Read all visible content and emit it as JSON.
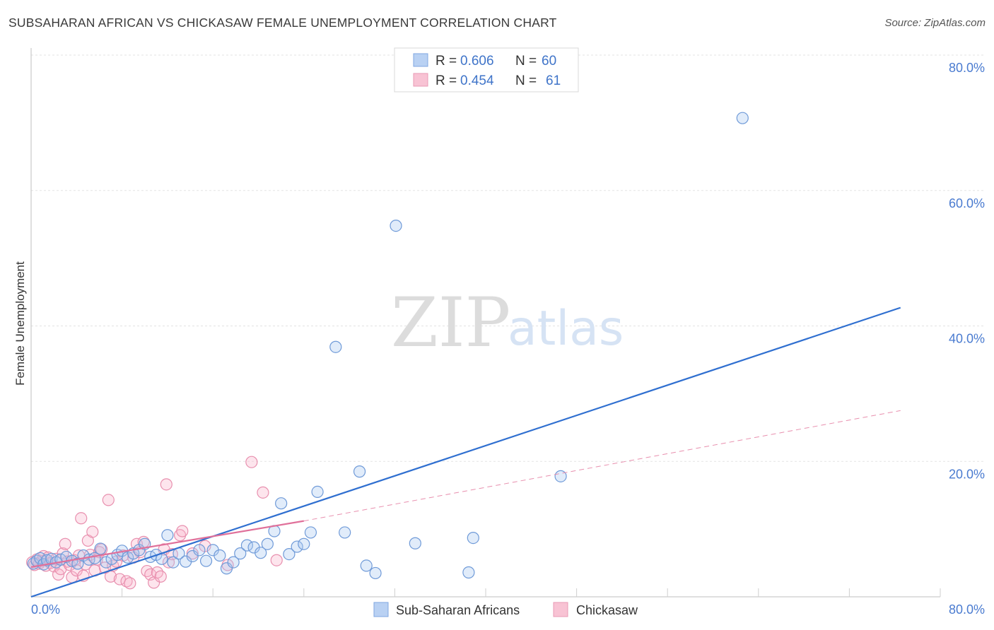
{
  "title": "SUBSAHARAN AFRICAN VS CHICKASAW FEMALE UNEMPLOYMENT CORRELATION CHART",
  "source": "Source: ZipAtlas.com",
  "watermark": {
    "zip": "ZIP",
    "atlas": "atlas"
  },
  "legend": {
    "r_label": "R =",
    "n_label": "N =",
    "series": [
      {
        "r": "0.606",
        "n": "60"
      },
      {
        "r": "0.454",
        "n": "61"
      }
    ]
  },
  "bottom_legend": [
    "Sub-Saharan Africans",
    "Chickasaw"
  ],
  "chart_data": {
    "type": "scatter",
    "title": "SUBSAHARAN AFRICAN VS CHICKASAW FEMALE UNEMPLOYMENT CORRELATION CHART",
    "xlabel": "",
    "ylabel": "Female Unemployment",
    "xlim": [
      0,
      80
    ],
    "ylim": [
      0,
      80
    ],
    "x_tick_labels": [
      "0.0%",
      "80.0%"
    ],
    "y_tick_labels": [
      "20.0%",
      "40.0%",
      "60.0%",
      "80.0%"
    ],
    "y_ticks": [
      20,
      40,
      60,
      80
    ],
    "grid": true,
    "legend_position": "top-center",
    "colors": {
      "series1": "#4a7bd0",
      "series2": "#e57aa0"
    },
    "series": [
      {
        "name": "Sub-Saharan Africans",
        "color": "#4a7bd0",
        "r": 0.606,
        "n": 60,
        "trend": {
          "x0": 0,
          "y0": 0,
          "x1": 76.5,
          "y1": 42.7
        },
        "points": [
          [
            0.2,
            4.9
          ],
          [
            0.5,
            5.3
          ],
          [
            0.8,
            5.7
          ],
          [
            1.1,
            4.8
          ],
          [
            1.4,
            5.4
          ],
          [
            1.8,
            5.6
          ],
          [
            2.2,
            5.1
          ],
          [
            2.6,
            5.5
          ],
          [
            3.1,
            5.9
          ],
          [
            3.6,
            5.3
          ],
          [
            4.1,
            4.9
          ],
          [
            4.6,
            6.1
          ],
          [
            5.1,
            5.5
          ],
          [
            5.6,
            5.7
          ],
          [
            6.1,
            7.1
          ],
          [
            6.6,
            5.1
          ],
          [
            7.1,
            5.6
          ],
          [
            7.6,
            6.2
          ],
          [
            8.0,
            6.8
          ],
          [
            8.5,
            5.8
          ],
          [
            9.0,
            6.4
          ],
          [
            9.5,
            6.9
          ],
          [
            10.0,
            7.8
          ],
          [
            10.5,
            5.9
          ],
          [
            11.0,
            6.2
          ],
          [
            11.5,
            5.6
          ],
          [
            12.0,
            9.1
          ],
          [
            12.5,
            5.1
          ],
          [
            13.0,
            6.4
          ],
          [
            13.6,
            5.2
          ],
          [
            14.2,
            6.0
          ],
          [
            14.8,
            6.9
          ],
          [
            15.4,
            5.3
          ],
          [
            16.0,
            6.9
          ],
          [
            16.6,
            6.1
          ],
          [
            17.2,
            4.2
          ],
          [
            17.8,
            5.1
          ],
          [
            18.4,
            6.4
          ],
          [
            19.0,
            7.6
          ],
          [
            19.6,
            7.3
          ],
          [
            20.2,
            6.5
          ],
          [
            20.8,
            7.8
          ],
          [
            21.4,
            9.7
          ],
          [
            22.0,
            13.8
          ],
          [
            22.7,
            6.3
          ],
          [
            23.4,
            7.4
          ],
          [
            24.0,
            7.8
          ],
          [
            24.6,
            9.5
          ],
          [
            25.2,
            15.5
          ],
          [
            26.8,
            36.9
          ],
          [
            27.6,
            9.5
          ],
          [
            28.9,
            18.5
          ],
          [
            29.5,
            4.6
          ],
          [
            30.3,
            3.5
          ],
          [
            32.1,
            54.8
          ],
          [
            33.8,
            7.9
          ],
          [
            38.5,
            3.6
          ],
          [
            38.9,
            8.7
          ],
          [
            46.6,
            17.8
          ],
          [
            62.6,
            70.7
          ]
        ]
      },
      {
        "name": "Chickasaw",
        "color": "#e57aa0",
        "r": 0.454,
        "n": 61,
        "trend": {
          "x0": 0,
          "y0": 4.4,
          "x1": 24.0,
          "y1": 11.2
        },
        "trend_dashed": {
          "x0": 24.0,
          "y0": 11.2,
          "x1": 76.5,
          "y1": 27.5
        },
        "points": [
          [
            0.1,
            5.1
          ],
          [
            0.3,
            4.7
          ],
          [
            0.5,
            5.5
          ],
          [
            0.7,
            4.9
          ],
          [
            0.9,
            5.3
          ],
          [
            1.1,
            6.0
          ],
          [
            1.3,
            4.6
          ],
          [
            1.5,
            5.8
          ],
          [
            1.7,
            5.0
          ],
          [
            2.0,
            4.5
          ],
          [
            2.2,
            5.6
          ],
          [
            2.4,
            3.3
          ],
          [
            2.6,
            4.1
          ],
          [
            2.8,
            6.4
          ],
          [
            3.0,
            7.8
          ],
          [
            3.2,
            5.2
          ],
          [
            3.4,
            4.7
          ],
          [
            3.6,
            2.9
          ],
          [
            3.8,
            5.4
          ],
          [
            4.0,
            3.9
          ],
          [
            4.2,
            6.1
          ],
          [
            4.4,
            11.6
          ],
          [
            4.6,
            3.1
          ],
          [
            4.8,
            4.8
          ],
          [
            5.0,
            8.3
          ],
          [
            5.2,
            6.2
          ],
          [
            5.4,
            9.6
          ],
          [
            5.6,
            3.9
          ],
          [
            5.8,
            5.5
          ],
          [
            6.0,
            6.6
          ],
          [
            6.2,
            7.0
          ],
          [
            6.5,
            4.3
          ],
          [
            6.8,
            14.3
          ],
          [
            7.0,
            3.0
          ],
          [
            7.2,
            4.6
          ],
          [
            7.5,
            5.2
          ],
          [
            7.8,
            2.6
          ],
          [
            8.1,
            6.1
          ],
          [
            8.4,
            2.3
          ],
          [
            8.7,
            2.0
          ],
          [
            9.0,
            5.8
          ],
          [
            9.3,
            7.8
          ],
          [
            9.6,
            6.6
          ],
          [
            9.9,
            8.1
          ],
          [
            10.2,
            3.8
          ],
          [
            10.5,
            3.3
          ],
          [
            10.8,
            2.1
          ],
          [
            11.1,
            3.6
          ],
          [
            11.4,
            3.0
          ],
          [
            11.7,
            7.0
          ],
          [
            11.9,
            16.6
          ],
          [
            12.1,
            5.1
          ],
          [
            12.4,
            6.3
          ],
          [
            13.1,
            9.1
          ],
          [
            13.3,
            9.7
          ],
          [
            14.2,
            6.4
          ],
          [
            15.3,
            7.5
          ],
          [
            17.3,
            4.7
          ],
          [
            19.4,
            19.9
          ],
          [
            20.4,
            15.4
          ],
          [
            21.6,
            5.4
          ]
        ]
      }
    ]
  }
}
